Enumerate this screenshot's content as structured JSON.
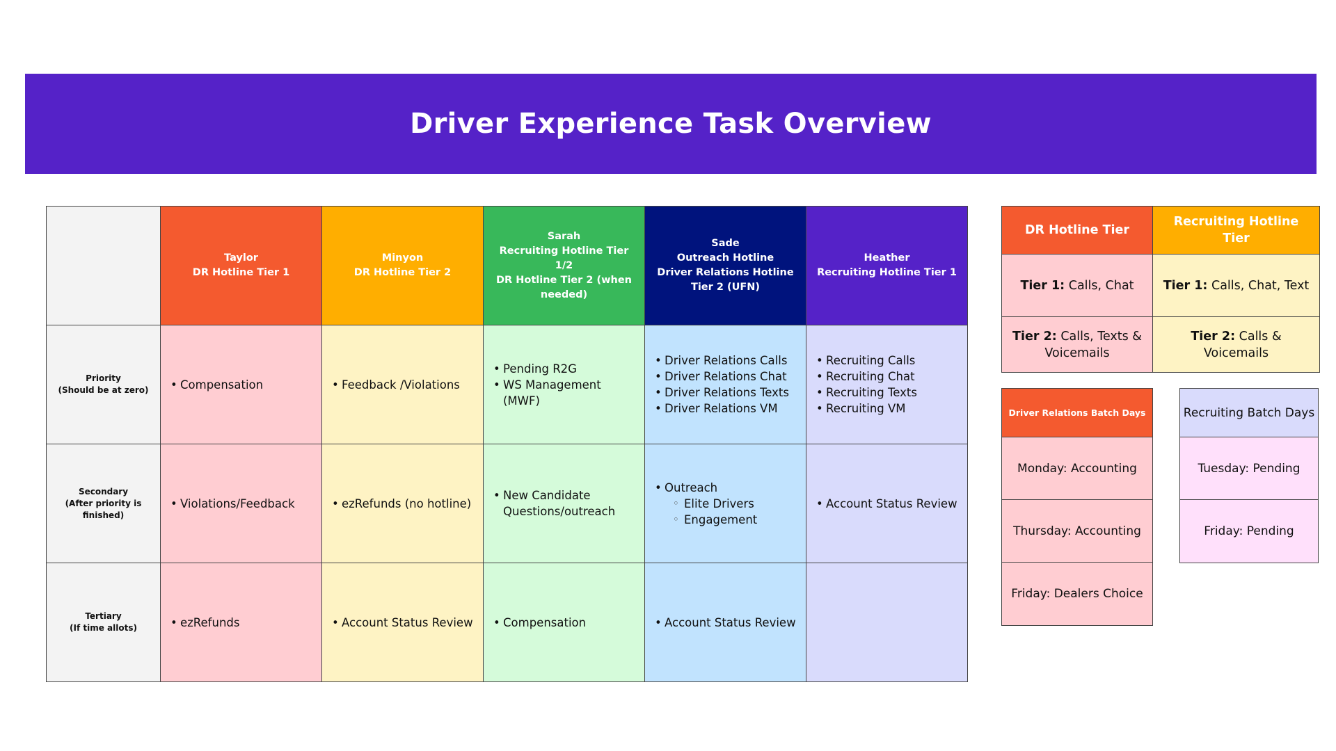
{
  "title": "Driver Experience Task Overview",
  "colors": {
    "banner": "#5522c8",
    "taylor": "#f45a2f",
    "minyon": "#ffae00",
    "sarah": "#38b85a",
    "sade": "#00137d",
    "heather": "#5522c8"
  },
  "columns": [
    {
      "name": "Taylor",
      "roles": [
        "DR Hotline Tier 1"
      ]
    },
    {
      "name": "Minyon",
      "roles": [
        "DR Hotline Tier 2"
      ]
    },
    {
      "name": "Sarah",
      "roles": [
        "Recruiting Hotline Tier 1/2",
        "DR Hotline Tier 2 (when needed)"
      ]
    },
    {
      "name": "Sade",
      "roles": [
        "Outreach Hotline",
        "Driver Relations Hotline Tier 2 (UFN)"
      ]
    },
    {
      "name": "Heather",
      "roles": [
        "Recruiting Hotline Tier 1"
      ]
    }
  ],
  "rows": [
    {
      "label": "Priority",
      "sublabel": "(Should be at zero)",
      "cells": [
        [
          "Compensation"
        ],
        [
          "Feedback /Violations"
        ],
        [
          "Pending R2G",
          "WS Management (MWF)"
        ],
        [
          "Driver Relations Calls",
          "Driver Relations Chat",
          "Driver Relations Texts",
          "Driver Relations VM"
        ],
        [
          "Recruiting Calls",
          "Recruiting Chat",
          "Recruiting Texts",
          "Recruiting VM"
        ]
      ]
    },
    {
      "label": "Secondary",
      "sublabel": "(After priority is finished)",
      "cells": [
        [
          "Violations/Feedback"
        ],
        [
          "ezRefunds (no hotline)"
        ],
        [
          "New Candidate Questions/outreach"
        ],
        [
          "Outreach"
        ],
        [
          "Account Status Review"
        ]
      ],
      "sade_subitems": [
        "Elite Drivers",
        "Engagement"
      ]
    },
    {
      "label": "Tertiary",
      "sublabel": "(If time allots)",
      "cells": [
        [
          "ezRefunds"
        ],
        [
          "Account Status Review"
        ],
        [
          "Compensation"
        ],
        [
          "Account Status Review"
        ],
        []
      ]
    }
  ],
  "tier_table": {
    "headers": [
      "DR Hotline Tier",
      "Recruiting Hotline Tier"
    ],
    "dr_tier1_label": "Tier 1:",
    "dr_tier1_text": " Calls, Chat",
    "rec_tier1_label": "Tier 1:",
    "rec_tier1_text": " Calls, Chat, Text",
    "dr_tier2_label": "Tier 2:",
    "dr_tier2_text": " Calls, Texts & Voicemails",
    "rec_tier2_label": "Tier 2:",
    "rec_tier2_text": " Calls & Voicemails"
  },
  "dr_batch": {
    "title": "Driver Relations Batch Days",
    "days": [
      "Monday: Accounting",
      "Thursday: Accounting",
      "Friday: Dealers Choice"
    ]
  },
  "rec_batch": {
    "title": "Recruiting Batch Days",
    "days": [
      "Tuesday: Pending",
      "Friday: Pending"
    ]
  }
}
